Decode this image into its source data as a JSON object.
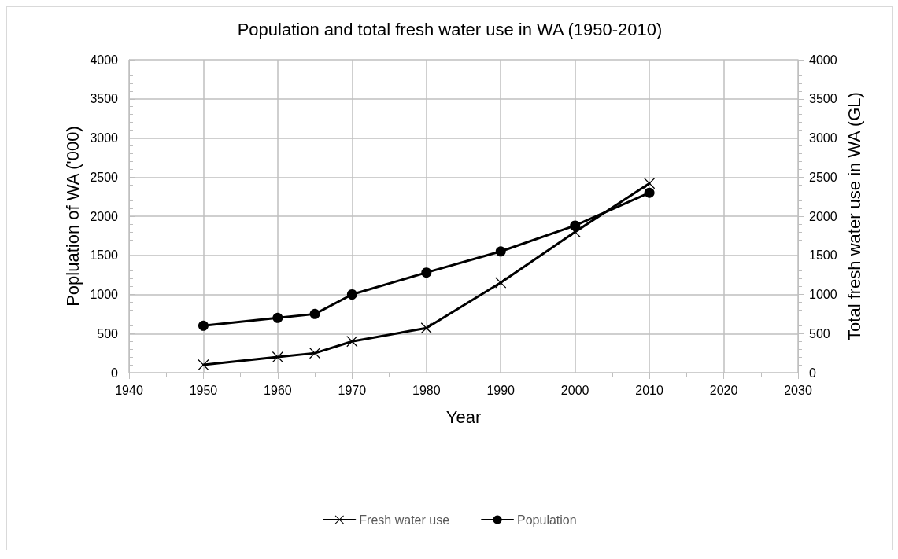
{
  "chart_data": {
    "type": "line",
    "title": "Population and total fresh water use in WA (1950-2010)",
    "xlabel": "Year",
    "ylabel": "Popluation of WA ('000)",
    "y2label": "Total fresh water use in WA (GL)",
    "series": [
      {
        "name": "Fresh water use",
        "color": "#000000",
        "marker": "cross",
        "x": [
          1950,
          1960,
          1965,
          1970,
          1980,
          1990,
          2000,
          2010
        ],
        "values": [
          100,
          200,
          250,
          400,
          570,
          1150,
          1800,
          2420
        ]
      },
      {
        "name": "Population",
        "color": "#000000",
        "marker": "circle",
        "x": [
          1950,
          1960,
          1965,
          1970,
          1980,
          1990,
          2000,
          2010
        ],
        "values": [
          600,
          700,
          750,
          1000,
          1280,
          1550,
          1880,
          2300
        ]
      }
    ],
    "xlim": [
      1940,
      2030
    ],
    "xticks": [
      1940,
      1950,
      1960,
      1970,
      1980,
      1990,
      2000,
      2010,
      2020,
      2030
    ],
    "ylim": [
      0,
      4000
    ],
    "yticks": [
      0,
      500,
      1000,
      1500,
      2000,
      2500,
      3000,
      3500,
      4000
    ],
    "y2lim": [
      0,
      4000
    ],
    "y2ticks": [
      0,
      500,
      1000,
      1500,
      2000,
      2500,
      3000,
      3500,
      4000
    ],
    "grid": true,
    "legend": "bottom",
    "line_style": "solid"
  }
}
